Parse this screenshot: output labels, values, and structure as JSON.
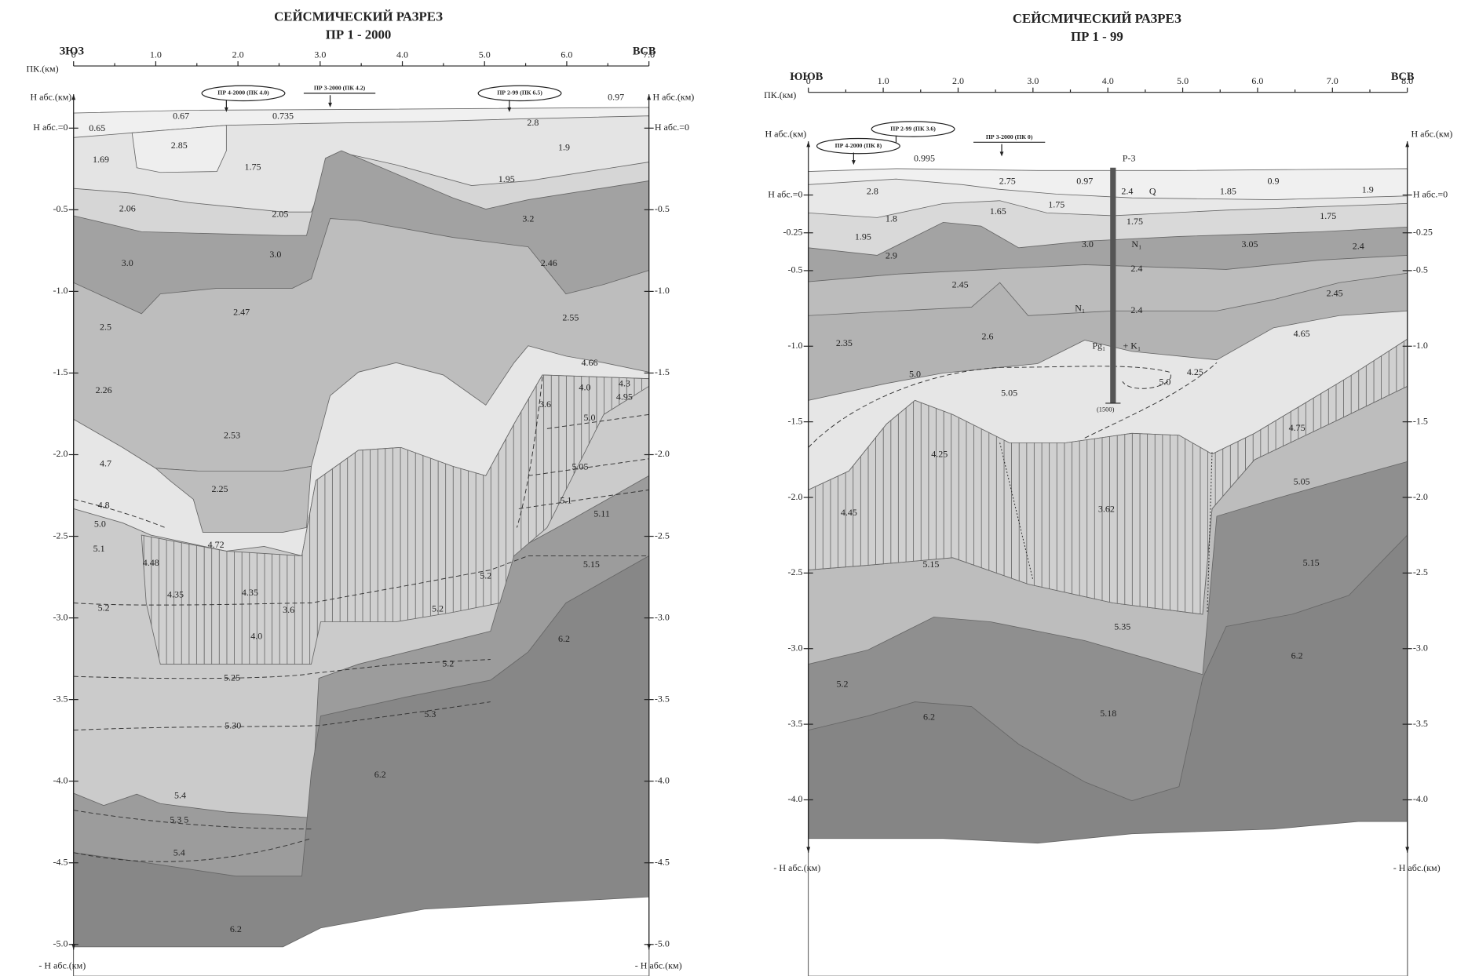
{
  "sections": [
    {
      "title": "СЕЙСМИЧЕСКИЙ РАЗРЕЗ",
      "subtitle": "ПР 1 - 2000",
      "direction_left": "ЗЮЗ",
      "direction_right": "ВСВ",
      "x_axis_label": "ПК.(км)",
      "x_ticks": [
        "0",
        "1.0",
        "2.0",
        "3.0",
        "4.0",
        "5.0",
        "6.0",
        "7.0"
      ],
      "depth_axis_label": "Н абс.(км)",
      "zero_label": "Н абс.=0",
      "depth_ticks": [
        "-0.5",
        "-1.0",
        "-1.5",
        "-2.0",
        "-2.5",
        "-3.0",
        "-3.5",
        "-4.0",
        "-4.5",
        "-5.0"
      ],
      "bottom_label": "- Н абс.(км)",
      "profiles": [
        {
          "label": "ПР 4-2000 (ПК 4.0)",
          "boxed": true
        },
        {
          "label": "ПР 3-2000 (ПК 4.2)",
          "boxed": false
        },
        {
          "label": "ПР 2-99 (ПК 6.5)",
          "boxed": true
        }
      ],
      "velocity_labels": [
        "0.97",
        "0.67",
        "0.735",
        "2.8",
        "0.65",
        "2.85",
        "1.9",
        "1.69",
        "1.75",
        "1.95",
        "2.06",
        "2.05",
        "3.2",
        "3.0",
        "3.0",
        "2.46",
        "2.47",
        "2.55",
        "2.5",
        "4.66",
        "2.26",
        "4.0",
        "4.3",
        "4.95",
        "3.6",
        "5.0",
        "2.53",
        "4.7",
        "5.05",
        "2.25",
        "4.8",
        "5.1",
        "5.0",
        "5.11",
        "5.1",
        "4.72",
        "4.48",
        "4.35",
        "4.35",
        "5.15",
        "5.2",
        "5.2",
        "3.6",
        "5.2",
        "4.0",
        "6.2",
        "5.25",
        "5.2",
        "5.30",
        "5.3",
        "6.2",
        "5.4",
        "5.3 5",
        "5.4",
        "6.2"
      ]
    },
    {
      "title": "СЕЙСМИЧЕСКИЙ РАЗРЕЗ",
      "subtitle": "ПР 1 - 99",
      "direction_left": "ЮЮВ",
      "direction_right": "ВСВ",
      "x_axis_label": "ПК.(км)",
      "x_ticks": [
        "0",
        "1.0",
        "2.0",
        "3.0",
        "4.0",
        "5.0",
        "6.0",
        "7.0",
        "8.0"
      ],
      "depth_axis_label": "Н абс.(км)",
      "zero_label": "Н абс.=0",
      "depth_ticks": [
        "-0.25",
        "-0.5",
        "-1.0",
        "-1.5",
        "-2.0",
        "-2.5",
        "-3.0",
        "-3.5",
        "-4.0"
      ],
      "bottom_label": "- Н абс.(км)",
      "profiles": [
        {
          "label": "ПР 2-99 (ПК 3.6)",
          "boxed": true
        },
        {
          "label": "ПР 4-2000 (ПК 8)",
          "boxed": true
        },
        {
          "label": "ПР 3-2000 (ПК 0)",
          "boxed": false
        }
      ],
      "borehole": {
        "label": "Р-3",
        "depth": "(1500)"
      },
      "velocity_labels": [
        "0.995",
        "2.75",
        "0.97",
        "2.8",
        "2.4",
        "Q",
        "1.85",
        "0.9",
        "1.9",
        "1.8",
        "1.65",
        "1.75",
        "1.75",
        "1.75",
        "1.95",
        "2.9",
        "3.0",
        "N₁",
        "3.05",
        "2.4",
        "2.4",
        "2.45",
        "2.45",
        "2.4",
        "N₁",
        "2.6",
        "2.35",
        "Pg₁",
        "+ K₁",
        "4.65",
        "5.0",
        "5.05",
        "5.0",
        "4.25",
        "4.75",
        "4.25",
        "5.05",
        "3.62",
        "4.45",
        "5.15",
        "5.15",
        "5.35",
        "6.2",
        "5.2",
        "6.2",
        "5.18"
      ]
    }
  ]
}
